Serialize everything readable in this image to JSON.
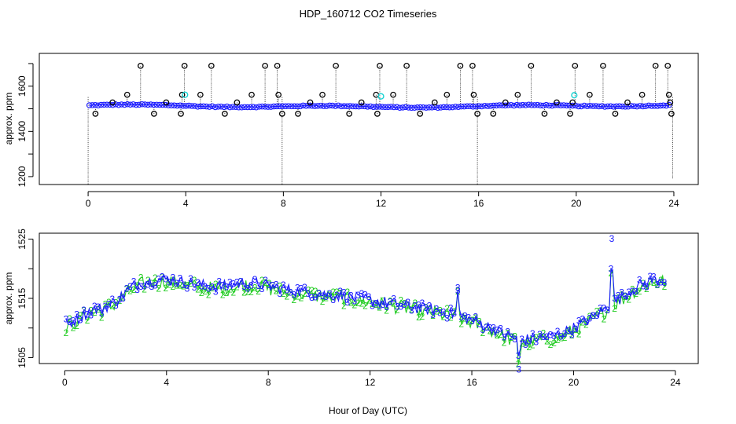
{
  "title": "HDP_160712  CO2 Timeseries",
  "colors": {
    "black": "#000000",
    "blue": "#1a1aff",
    "green": "#22cc22",
    "cyan": "#19d3d3"
  },
  "chart_data": [
    {
      "type": "scatter",
      "panel": "top",
      "title": "HDP_160712  CO2 Timeseries",
      "xlabel": "",
      "ylabel": "approx. ppm",
      "xlim": [
        -2,
        25
      ],
      "ylim": [
        1165,
        1745
      ],
      "xticks": [
        "0",
        "4",
        "8",
        "12",
        "16",
        "20",
        "24"
      ],
      "yticks": [
        "1200",
        "1400",
        "1600"
      ],
      "baseline_ppm": 1512,
      "series": [
        {
          "name": "blue",
          "description": "near-continuous record around 1510-1520 ppm"
        },
        {
          "name": "black-circles",
          "description": "discrete samples with vertical drop lines",
          "outliers": [
            {
              "x": 0.3,
              "y": 1478
            },
            {
              "x": 1.0,
              "y": 1528
            },
            {
              "x": 1.6,
              "y": 1562
            },
            {
              "x": 2.15,
              "y": 1690
            },
            {
              "x": 2.7,
              "y": 1478
            },
            {
              "x": 3.2,
              "y": 1528
            },
            {
              "x": 3.8,
              "y": 1478
            },
            {
              "x": 3.85,
              "y": 1562
            },
            {
              "x": 3.95,
              "y": 1690
            },
            {
              "x": 4.6,
              "y": 1562
            },
            {
              "x": 5.05,
              "y": 1690
            },
            {
              "x": 5.6,
              "y": 1478
            },
            {
              "x": 6.1,
              "y": 1528
            },
            {
              "x": 6.7,
              "y": 1562
            },
            {
              "x": 7.25,
              "y": 1690
            },
            {
              "x": 7.75,
              "y": 1690
            },
            {
              "x": 7.8,
              "y": 1562
            },
            {
              "x": 7.95,
              "y": 1478
            },
            {
              "x": 8.6,
              "y": 1478
            },
            {
              "x": 9.1,
              "y": 1528
            },
            {
              "x": 9.6,
              "y": 1562
            },
            {
              "x": 10.15,
              "y": 1690
            },
            {
              "x": 10.7,
              "y": 1478
            },
            {
              "x": 11.2,
              "y": 1528
            },
            {
              "x": 11.8,
              "y": 1562
            },
            {
              "x": 11.85,
              "y": 1478
            },
            {
              "x": 11.95,
              "y": 1690
            },
            {
              "x": 12.5,
              "y": 1562
            },
            {
              "x": 13.05,
              "y": 1690
            },
            {
              "x": 13.6,
              "y": 1478
            },
            {
              "x": 14.2,
              "y": 1528
            },
            {
              "x": 14.7,
              "y": 1562
            },
            {
              "x": 15.25,
              "y": 1690
            },
            {
              "x": 15.75,
              "y": 1690
            },
            {
              "x": 15.8,
              "y": 1562
            },
            {
              "x": 15.95,
              "y": 1478
            },
            {
              "x": 16.6,
              "y": 1478
            },
            {
              "x": 17.1,
              "y": 1528
            },
            {
              "x": 17.6,
              "y": 1562
            },
            {
              "x": 18.15,
              "y": 1690
            },
            {
              "x": 18.7,
              "y": 1478
            },
            {
              "x": 19.2,
              "y": 1528
            },
            {
              "x": 19.75,
              "y": 1478
            },
            {
              "x": 19.85,
              "y": 1528
            },
            {
              "x": 19.95,
              "y": 1690
            },
            {
              "x": 20.55,
              "y": 1562
            },
            {
              "x": 21.1,
              "y": 1690
            },
            {
              "x": 21.6,
              "y": 1478
            },
            {
              "x": 22.1,
              "y": 1528
            },
            {
              "x": 22.7,
              "y": 1562
            },
            {
              "x": 23.25,
              "y": 1690
            },
            {
              "x": 23.75,
              "y": 1690
            },
            {
              "x": 23.8,
              "y": 1562
            },
            {
              "x": 23.85,
              "y": 1528
            },
            {
              "x": 23.9,
              "y": 1478
            }
          ]
        },
        {
          "name": "cyan",
          "description": "few highlighted samples",
          "points": [
            {
              "x": 3.97,
              "y": 1562
            },
            {
              "x": 12.0,
              "y": 1555
            },
            {
              "x": 19.92,
              "y": 1560
            }
          ]
        }
      ],
      "drop_lines_to_bottom": [
        0.0,
        7.95,
        15.95,
        23.95
      ]
    },
    {
      "type": "line",
      "panel": "bottom",
      "xlabel": "Hour of Day (UTC)",
      "ylabel": "approx. ppm",
      "xlim": [
        -1,
        24.9
      ],
      "ylim": [
        1504,
        1526
      ],
      "xticks": [
        "0",
        "4",
        "8",
        "12",
        "16",
        "20",
        "24"
      ],
      "yticks": [
        "1505",
        "1515",
        "1525"
      ],
      "series": [
        {
          "name": "3",
          "marker": "3",
          "color": "blue"
        },
        {
          "name": "2",
          "marker": "2",
          "color": "green"
        }
      ],
      "trend": [
        {
          "x": 0.0,
          "y": 1510.5
        },
        {
          "x": 0.5,
          "y": 1511.5
        },
        {
          "x": 1.0,
          "y": 1513.0
        },
        {
          "x": 1.5,
          "y": 1513.3
        },
        {
          "x": 2.0,
          "y": 1514.5
        },
        {
          "x": 2.5,
          "y": 1516.5
        },
        {
          "x": 3.0,
          "y": 1517.8
        },
        {
          "x": 3.5,
          "y": 1518.0
        },
        {
          "x": 4.0,
          "y": 1518.3
        },
        {
          "x": 4.5,
          "y": 1517.8
        },
        {
          "x": 5.0,
          "y": 1517.5
        },
        {
          "x": 5.5,
          "y": 1517.2
        },
        {
          "x": 6.0,
          "y": 1517.0
        },
        {
          "x": 6.5,
          "y": 1517.2
        },
        {
          "x": 7.0,
          "y": 1517.6
        },
        {
          "x": 7.5,
          "y": 1517.6
        },
        {
          "x": 8.0,
          "y": 1517.0
        },
        {
          "x": 8.5,
          "y": 1516.7
        },
        {
          "x": 9.0,
          "y": 1516.3
        },
        {
          "x": 9.5,
          "y": 1516.0
        },
        {
          "x": 10.0,
          "y": 1515.8
        },
        {
          "x": 10.5,
          "y": 1515.6
        },
        {
          "x": 11.0,
          "y": 1515.3
        },
        {
          "x": 11.5,
          "y": 1515.0
        },
        {
          "x": 12.0,
          "y": 1514.7
        },
        {
          "x": 12.5,
          "y": 1514.4
        },
        {
          "x": 13.0,
          "y": 1514.0
        },
        {
          "x": 13.5,
          "y": 1513.7
        },
        {
          "x": 14.0,
          "y": 1513.3
        },
        {
          "x": 14.5,
          "y": 1513.0
        },
        {
          "x": 15.0,
          "y": 1512.6
        },
        {
          "x": 15.5,
          "y": 1512.0
        },
        {
          "x": 16.0,
          "y": 1511.3
        },
        {
          "x": 16.5,
          "y": 1510.5
        },
        {
          "x": 17.0,
          "y": 1509.5
        },
        {
          "x": 17.5,
          "y": 1508.5
        },
        {
          "x": 18.0,
          "y": 1508.0
        },
        {
          "x": 18.5,
          "y": 1508.2
        },
        {
          "x": 19.0,
          "y": 1508.5
        },
        {
          "x": 19.5,
          "y": 1509.0
        },
        {
          "x": 20.0,
          "y": 1510.0
        },
        {
          "x": 20.5,
          "y": 1511.2
        },
        {
          "x": 21.0,
          "y": 1512.5
        },
        {
          "x": 21.5,
          "y": 1514.0
        },
        {
          "x": 22.0,
          "y": 1515.5
        },
        {
          "x": 22.5,
          "y": 1517.0
        },
        {
          "x": 23.0,
          "y": 1518.0
        },
        {
          "x": 23.5,
          "y": 1518.3
        },
        {
          "x": 23.7,
          "y": 1518.0
        }
      ],
      "spikes": [
        {
          "x": 15.45,
          "y": 1516.0
        },
        {
          "x": 17.85,
          "y": 1503.8
        },
        {
          "x": 21.5,
          "y": 1524.3
        }
      ]
    }
  ]
}
